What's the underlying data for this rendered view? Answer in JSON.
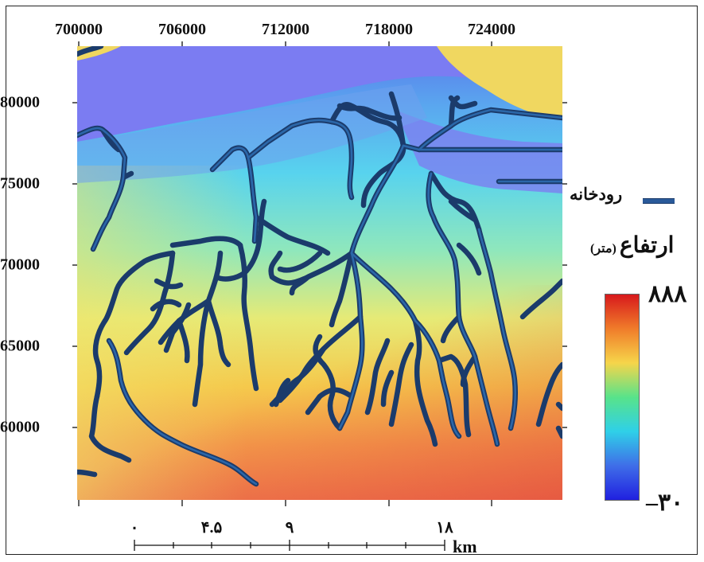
{
  "map": {
    "x_ticks": [
      "700000",
      "706000",
      "712000",
      "718000",
      "724000"
    ],
    "y_ticks": [
      "80000",
      "75000",
      "70000",
      "65000",
      "60000"
    ],
    "colors": {
      "sea": "#7b7cf2",
      "sand": "#f0d760",
      "river": "#2a5a9a",
      "river_edge": "#1b3b6b"
    }
  },
  "legend": {
    "river_label": "رودخانه",
    "elevation_title": "ارتفاع",
    "elevation_unit": "(متر)",
    "max_label": "۸۸۸",
    "min_label": "–۳۰",
    "gradient": [
      "#d7191c",
      "#f07c2a",
      "#f6d54a",
      "#58e38a",
      "#2fd0e8",
      "#3f6ee8",
      "#2020e0"
    ]
  },
  "scale_bar": {
    "labels": [
      "۰",
      "۴.۵",
      "۹",
      "۱۸"
    ],
    "unit": "km"
  }
}
